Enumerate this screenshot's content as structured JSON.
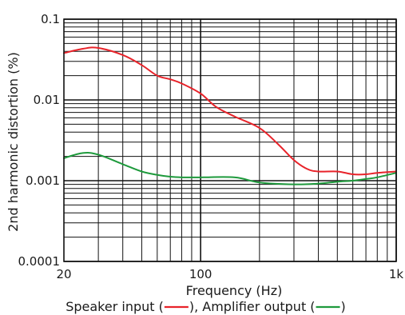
{
  "chart_data": {
    "type": "line",
    "xlabel": "Frequency (Hz)",
    "ylabel": "2nd harmonic distortion (%)",
    "xscale": "log",
    "yscale": "log",
    "xlim": [
      20,
      1000
    ],
    "ylim": [
      0.0001,
      0.1
    ],
    "grid": true,
    "x_ticks": [
      {
        "value": 20,
        "label": "20"
      },
      {
        "value": 100,
        "label": "100"
      },
      {
        "value": 1000,
        "label": "1k"
      }
    ],
    "y_ticks": [
      {
        "value": 0.1,
        "label": "0.1"
      },
      {
        "value": 0.01,
        "label": "0.01"
      },
      {
        "value": 0.001,
        "label": "0.001"
      },
      {
        "value": 0.0001,
        "label": "0.0001"
      }
    ],
    "legend": {
      "position": "bottom",
      "text_before": "Speaker input (",
      "text_middle": "), Amplifier output (",
      "text_after": ")"
    },
    "series": [
      {
        "name": "Speaker input",
        "color": "#e8232a",
        "x": [
          20,
          25,
          30,
          40,
          50,
          60,
          70,
          80,
          100,
          120,
          150,
          200,
          250,
          300,
          350,
          400,
          500,
          600,
          700,
          800,
          1000
        ],
        "y": [
          0.038,
          0.043,
          0.044,
          0.036,
          0.027,
          0.02,
          0.018,
          0.016,
          0.012,
          0.0082,
          0.0062,
          0.0045,
          0.0028,
          0.0018,
          0.0014,
          0.0013,
          0.0013,
          0.0012,
          0.0012,
          0.00125,
          0.0013
        ]
      },
      {
        "name": "Amplifier output",
        "color": "#1e9a3c",
        "x": [
          20,
          25,
          30,
          40,
          50,
          60,
          70,
          80,
          100,
          150,
          200,
          300,
          400,
          500,
          600,
          700,
          800,
          1000
        ],
        "y": [
          0.0019,
          0.0022,
          0.0021,
          0.0016,
          0.0013,
          0.00118,
          0.00112,
          0.0011,
          0.0011,
          0.0011,
          0.00095,
          0.0009,
          0.00092,
          0.00097,
          0.001,
          0.00105,
          0.0011,
          0.00125
        ]
      }
    ]
  }
}
